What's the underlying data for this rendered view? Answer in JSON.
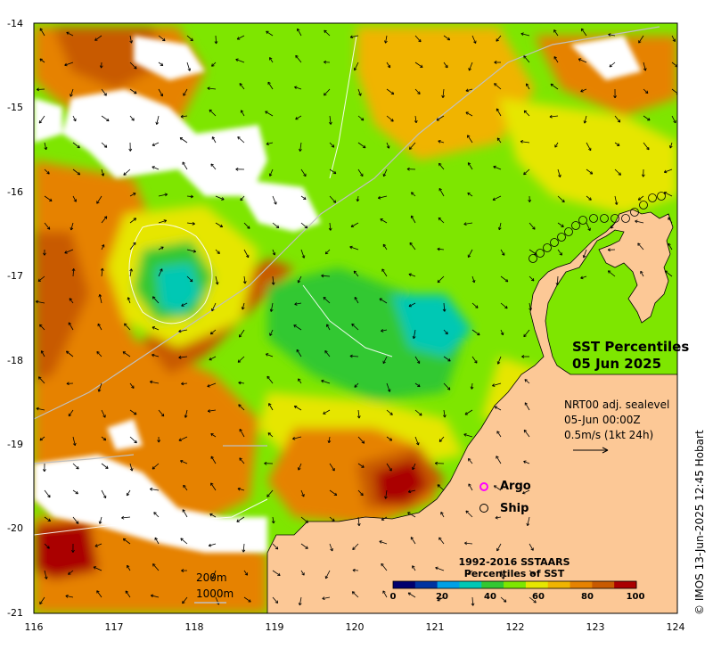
{
  "title": {
    "line1": "SST Percentiles",
    "line2": "05 Jun 2025"
  },
  "info": {
    "line1": "NRT00 adj. sealevel",
    "line2": "05-Jun 00:00Z",
    "line3": "0.5m/s (1kt 24h)"
  },
  "legend": {
    "argo": "Argo",
    "ship": "Ship"
  },
  "colorbar": {
    "title_line1": "1992-2016 SSTAARS",
    "title_line2": "Percentiles of SST",
    "ticks": [
      "0",
      "20",
      "40",
      "60",
      "80",
      "100"
    ],
    "colors": [
      "#00006e",
      "#0033a0",
      "#00a0e6",
      "#00c8b4",
      "#32c832",
      "#7ee600",
      "#e6e600",
      "#f0b400",
      "#e68200",
      "#c85a00",
      "#aa0000"
    ]
  },
  "depth_labels": {
    "contour_200": "200m",
    "contour_1000": "1000m"
  },
  "axes": {
    "lon_ticks": [
      "116",
      "117",
      "118",
      "119",
      "120",
      "121",
      "122",
      "123",
      "124"
    ],
    "lat_ticks": [
      "-14",
      "-15",
      "-16",
      "-17",
      "-18",
      "-19",
      "-20",
      "-21"
    ]
  },
  "credit": "© IMOS 13-Jun-2025 12:45 Hobart",
  "colors": {
    "land": "#fcc896",
    "cloud": "#ffffff",
    "contour_200": "#c0c0c0",
    "contour_1000": "#ffffff",
    "argo_marker": "#ff00ff"
  }
}
